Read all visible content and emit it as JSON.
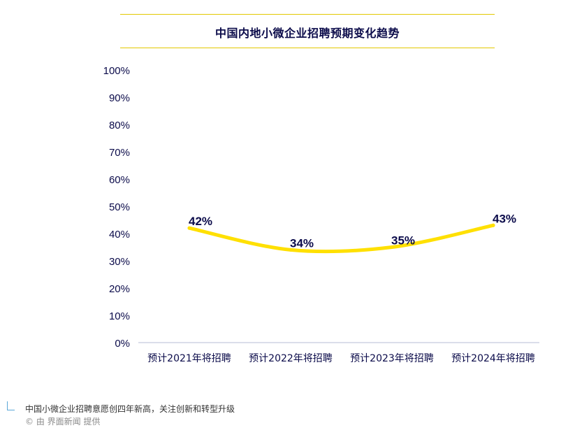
{
  "chart_data": {
    "type": "line",
    "title": "中国内地小微企业招聘预期变化趋势",
    "categories": [
      "预计2021年将招聘",
      "预计2022年将招聘",
      "预计2023年将招聘",
      "预计2024年将招聘"
    ],
    "series": [
      {
        "values": [
          42,
          34,
          35,
          43
        ],
        "data_labels": [
          "42%",
          "34%",
          "35%",
          "43%"
        ]
      }
    ],
    "ylim": [
      0,
      100
    ],
    "y_ticks": [
      "0%",
      "10%",
      "20%",
      "30%",
      "40%",
      "50%",
      "60%",
      "70%",
      "80%",
      "90%",
      "100%"
    ],
    "y_tick_values": [
      0,
      10,
      20,
      30,
      40,
      50,
      60,
      70,
      80,
      90,
      100
    ],
    "grid": false,
    "colors": {
      "line": "#ffe000",
      "text": "#0b0b4a",
      "axis": "#b7bdd6"
    }
  },
  "caption": {
    "text": "中国小微企业招聘意愿创四年新高，关注创新和转型升级",
    "credit": "© 由 界面新闻 提供"
  }
}
